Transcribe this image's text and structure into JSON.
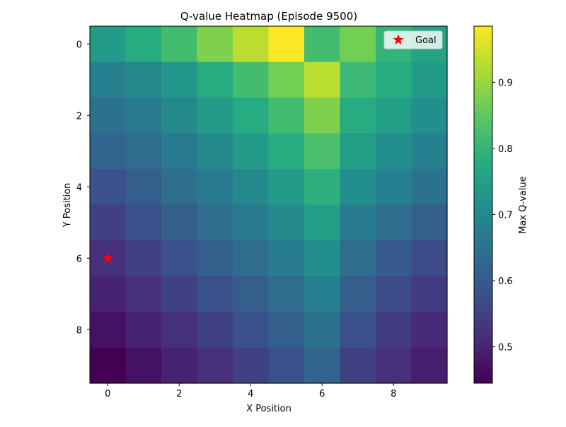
{
  "chart_data": {
    "type": "heatmap",
    "title": "Q-value Heatmap (Episode 9500)",
    "xlabel": "X Position",
    "ylabel": "Y Position",
    "x_ticks": [
      0,
      2,
      4,
      6,
      8
    ],
    "y_ticks": [
      0,
      2,
      4,
      6,
      8
    ],
    "x_range": [
      -0.5,
      9.5
    ],
    "y_range": [
      -0.5,
      9.5
    ],
    "y_inverted": true,
    "colormap": "viridis",
    "colorbar": {
      "label": "Max Q-value",
      "min": 0.445,
      "max": 0.985,
      "ticks": [
        0.5,
        0.6,
        0.7,
        0.8,
        0.9
      ]
    },
    "grid": false,
    "legend": {
      "position": "top-right",
      "entries": [
        {
          "label": "Goal",
          "marker": "star",
          "color": "#ff0000"
        }
      ]
    },
    "goal": {
      "x": 0,
      "y": 6
    },
    "values": [
      [
        0.74,
        0.78,
        0.82,
        0.88,
        0.93,
        0.985,
        0.82,
        0.87,
        0.8,
        0.76
      ],
      [
        0.68,
        0.7,
        0.73,
        0.78,
        0.82,
        0.87,
        0.93,
        0.81,
        0.78,
        0.74
      ],
      [
        0.65,
        0.67,
        0.7,
        0.74,
        0.78,
        0.82,
        0.88,
        0.78,
        0.75,
        0.71
      ],
      [
        0.62,
        0.64,
        0.67,
        0.7,
        0.74,
        0.78,
        0.83,
        0.75,
        0.71,
        0.68
      ],
      [
        0.58,
        0.61,
        0.64,
        0.67,
        0.7,
        0.74,
        0.79,
        0.71,
        0.68,
        0.65
      ],
      [
        0.55,
        0.58,
        0.61,
        0.64,
        0.67,
        0.7,
        0.75,
        0.67,
        0.64,
        0.61
      ],
      [
        0.52,
        0.55,
        0.58,
        0.61,
        0.64,
        0.67,
        0.71,
        0.64,
        0.6,
        0.57
      ],
      [
        0.5,
        0.52,
        0.55,
        0.58,
        0.61,
        0.64,
        0.68,
        0.61,
        0.57,
        0.54
      ],
      [
        0.47,
        0.5,
        0.52,
        0.55,
        0.58,
        0.61,
        0.65,
        0.58,
        0.54,
        0.51
      ],
      [
        0.445,
        0.47,
        0.5,
        0.52,
        0.55,
        0.58,
        0.62,
        0.55,
        0.52,
        0.49
      ]
    ]
  }
}
